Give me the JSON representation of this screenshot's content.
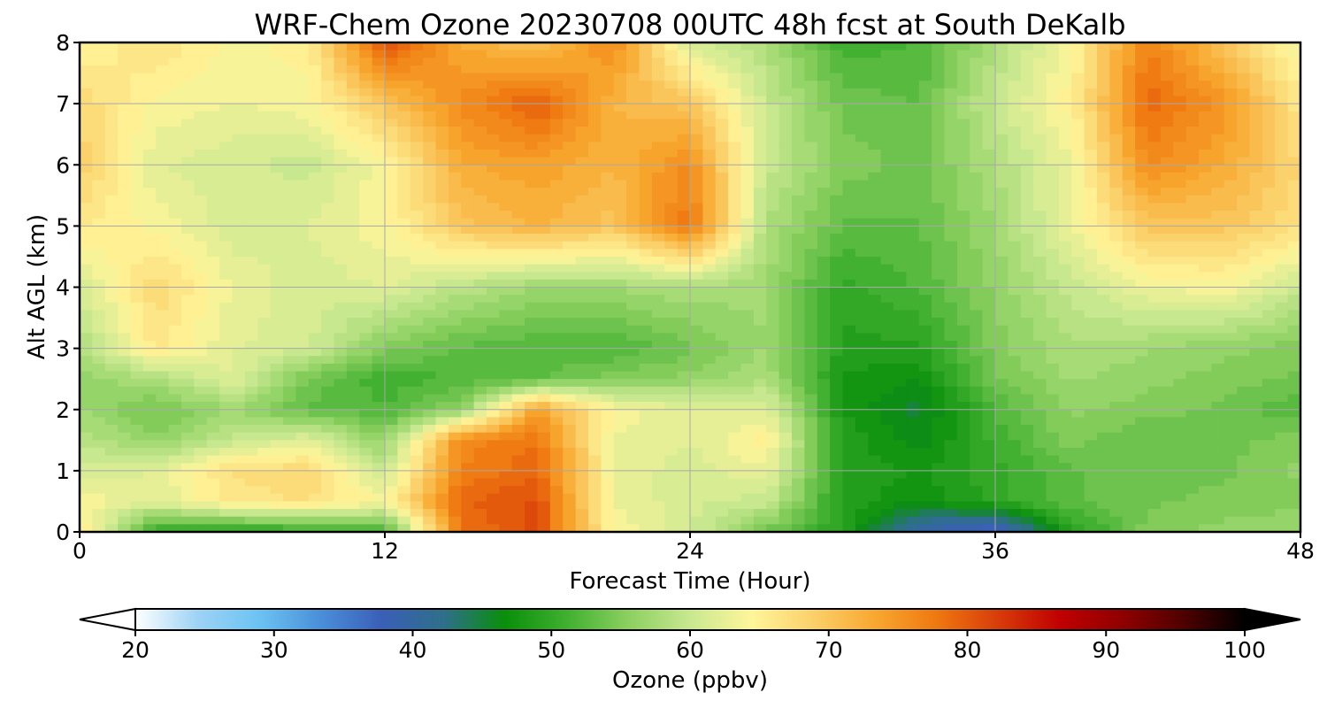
{
  "chart_data": {
    "type": "heatmap",
    "title": "WRF-Chem Ozone  20230708 00UTC 48h fcst at South DeKalb",
    "xlabel": "Forecast Time (Hour)",
    "ylabel": "Alt AGL (km)",
    "xlim": [
      0,
      48
    ],
    "ylim": [
      0,
      8
    ],
    "x_ticks": [
      "0",
      "12",
      "24",
      "36",
      "48"
    ],
    "y_ticks": [
      "0",
      "1",
      "2",
      "3",
      "4",
      "5",
      "6",
      "7",
      "8"
    ],
    "grid": true,
    "x": [
      0,
      3,
      6,
      9,
      12,
      15,
      18,
      21,
      24,
      27,
      30,
      33,
      36,
      39,
      42,
      45,
      48
    ],
    "y": [
      0,
      0.5,
      1,
      1.5,
      2,
      2.5,
      3,
      4,
      5,
      6,
      7,
      8
    ],
    "z": [
      [
        66,
        50,
        49,
        50,
        51,
        78,
        81,
        64,
        61,
        54,
        49,
        39,
        36,
        49,
        55,
        56,
        57
      ],
      [
        64,
        62,
        66,
        67,
        64,
        79,
        81,
        63,
        61,
        60,
        49,
        47,
        50,
        53,
        54,
        55,
        55
      ],
      [
        61,
        62,
        67,
        68,
        60,
        77,
        79,
        63,
        61,
        63,
        49,
        48,
        50,
        53,
        54,
        54,
        56
      ],
      [
        59,
        56,
        60,
        62,
        56,
        76,
        78,
        63,
        62,
        65,
        49,
        46,
        51,
        55,
        53,
        54,
        55
      ],
      [
        57,
        54,
        57,
        53,
        52,
        56,
        74,
        64,
        62,
        62,
        48,
        45,
        52,
        56,
        55,
        54,
        52
      ],
      [
        56,
        58,
        62,
        54,
        51,
        52,
        53,
        55,
        56,
        58,
        48,
        47,
        54,
        57,
        56,
        55,
        54
      ],
      [
        58,
        66,
        62,
        61,
        55,
        53,
        52,
        52,
        54,
        57,
        49,
        49,
        55,
        58,
        57,
        56,
        55
      ],
      [
        61,
        68,
        63,
        61,
        62,
        59,
        57,
        57,
        58,
        57,
        50,
        52,
        56,
        60,
        63,
        64,
        60
      ],
      [
        66,
        64,
        61,
        62,
        64,
        70,
        72,
        70,
        78,
        58,
        53,
        53,
        57,
        63,
        70,
        70,
        67
      ],
      [
        69,
        62,
        61,
        60,
        64,
        73,
        74,
        72,
        76,
        60,
        55,
        54,
        58,
        63,
        76,
        73,
        68
      ],
      [
        68,
        64,
        63,
        64,
        70,
        76,
        80,
        72,
        70,
        60,
        54,
        53,
        60,
        65,
        79,
        75,
        66
      ],
      [
        64,
        67,
        64,
        65,
        81,
        73,
        70,
        76,
        61,
        58,
        51,
        52,
        58,
        64,
        77,
        70,
        63
      ]
    ],
    "colorbar": {
      "label": "Ozone  (ppbv)",
      "min": 20,
      "max": 100,
      "ticks": [
        "20",
        "30",
        "40",
        "50",
        "60",
        "70",
        "80",
        "90",
        "100"
      ],
      "extend": "both",
      "colors": [
        "#ffffff",
        "#9ed3f5",
        "#6cc3f3",
        "#4a8fd9",
        "#3a5fb8",
        "#2e6f8a",
        "#0a8f0a",
        "#40b030",
        "#8cd060",
        "#c8e890",
        "#fff59a",
        "#fbd06a",
        "#f8a830",
        "#ef7810",
        "#d83c0a",
        "#c00000",
        "#900000",
        "#500000",
        "#000000"
      ]
    }
  }
}
